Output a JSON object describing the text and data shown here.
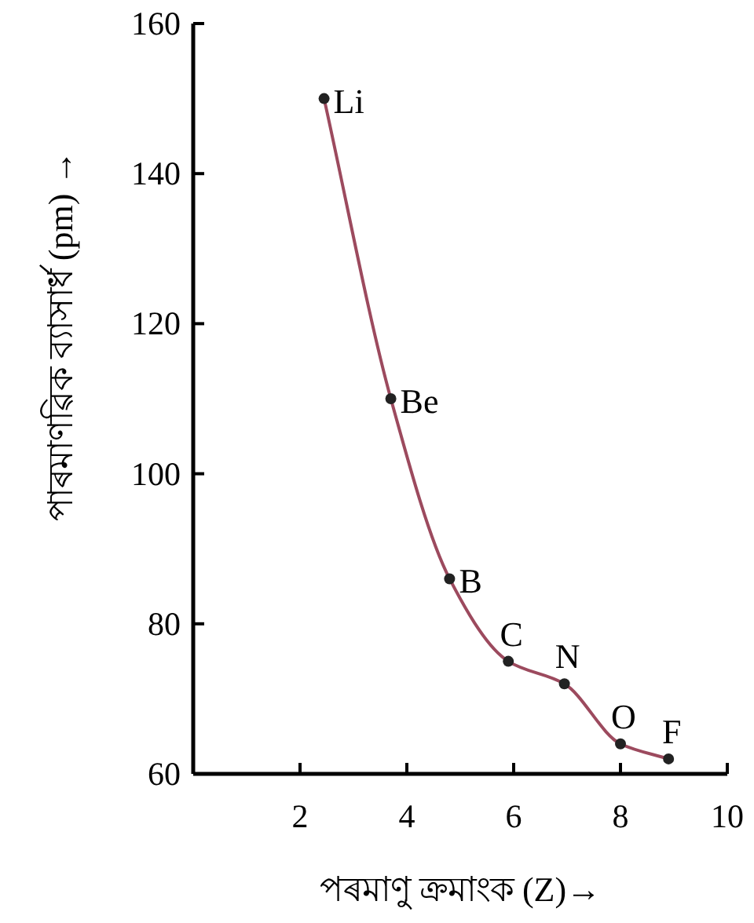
{
  "chart_data": {
    "type": "line",
    "xlabel": "পৰমাণু ক্ৰমাংক (Z)→",
    "ylabel": "পাৰমাণৱিক ব্যাসাৰ্ধ (pm) →",
    "xlim": [
      0,
      10
    ],
    "xticks": [
      2,
      4,
      6,
      8,
      10
    ],
    "ylim": [
      60,
      160
    ],
    "yticks": [
      60,
      80,
      100,
      120,
      140,
      160
    ],
    "grid": false,
    "marker": "circle",
    "line_style": "solid",
    "series": [
      {
        "color": "#9c4a5e",
        "x": [
          2.45,
          3.7,
          4.8,
          5.9,
          6.95,
          8.0,
          8.9
        ],
        "values": [
          150,
          110,
          86,
          75,
          72,
          64,
          62
        ]
      }
    ],
    "annotations": [
      {
        "text": "Li",
        "x": 2.45,
        "y": 150
      },
      {
        "text": "Be",
        "x": 3.7,
        "y": 110
      },
      {
        "text": "B",
        "x": 4.8,
        "y": 86
      },
      {
        "text": "C",
        "x": 5.9,
        "y": 75
      },
      {
        "text": "N",
        "x": 6.95,
        "y": 72
      },
      {
        "text": "O",
        "x": 8.0,
        "y": 64
      },
      {
        "text": "F",
        "x": 8.9,
        "y": 62
      }
    ]
  }
}
